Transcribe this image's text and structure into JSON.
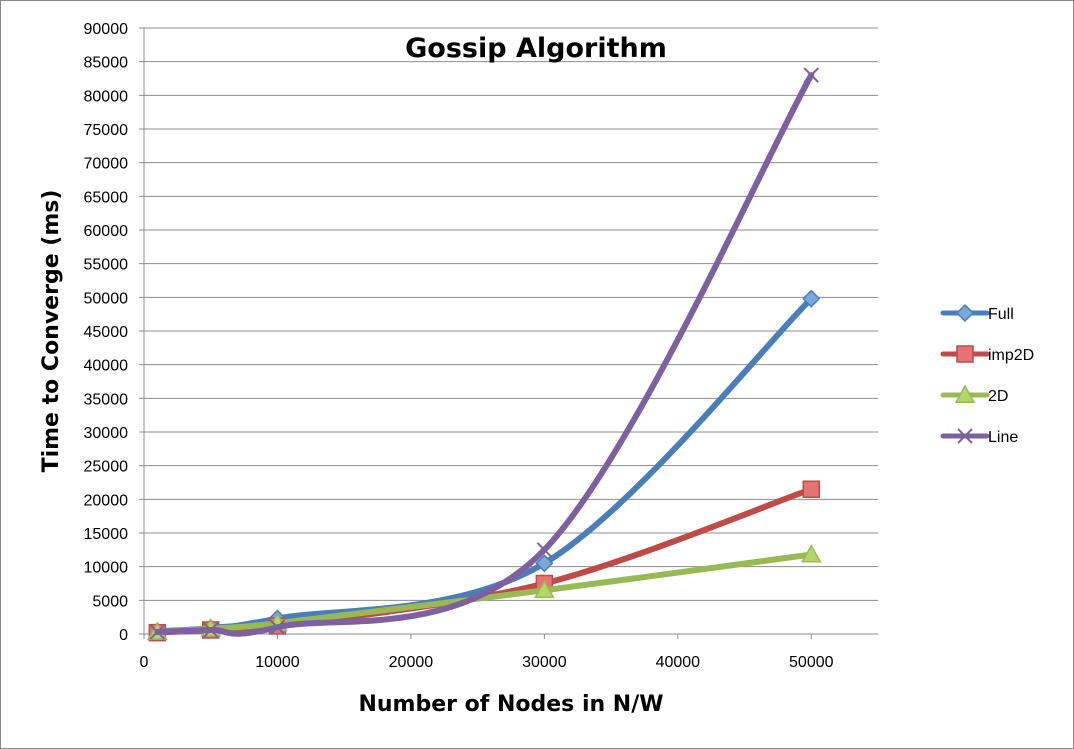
{
  "chart_data": {
    "type": "line",
    "title": "Gossip Algorithm",
    "xlabel": "Number of Nodes in N/W",
    "ylabel": "Time to Converge (ms)",
    "xlim": [
      0,
      55000
    ],
    "ylim": [
      0,
      90000
    ],
    "xticks": [
      0,
      10000,
      20000,
      30000,
      40000,
      50000
    ],
    "xtick_labels": [
      "0",
      "10000",
      "20000",
      "30000",
      "40000",
      "50000"
    ],
    "yticks": [
      0,
      5000,
      10000,
      15000,
      20000,
      25000,
      30000,
      35000,
      40000,
      45000,
      50000,
      55000,
      60000,
      65000,
      70000,
      75000,
      80000,
      85000,
      90000
    ],
    "ytick_labels": [
      "0",
      "5000",
      "10000",
      "15000",
      "20000",
      "25000",
      "30000",
      "35000",
      "40000",
      "45000",
      "50000",
      "55000",
      "60000",
      "65000",
      "70000",
      "75000",
      "80000",
      "85000",
      "90000"
    ],
    "grid": "horizontal",
    "legend_position": "right",
    "x": [
      1000,
      5000,
      10000,
      30000,
      50000
    ],
    "series": [
      {
        "name": "Full",
        "color": "#4a7ebb",
        "marker": "diamond",
        "marker_fill": "#7da7d9",
        "values": [
          400,
          900,
          2300,
          10500,
          49800
        ]
      },
      {
        "name": "imp2D",
        "color": "#be4b48",
        "marker": "square",
        "marker_fill": "#e57373",
        "values": [
          200,
          600,
          1200,
          7500,
          21500
        ]
      },
      {
        "name": "2D",
        "color": "#98b954",
        "marker": "triangle",
        "marker_fill": "#b5d56a",
        "values": [
          300,
          800,
          1600,
          6500,
          11800
        ]
      },
      {
        "name": "Line",
        "color": "#7d60a0",
        "marker": "x",
        "marker_fill": "#7d60a0",
        "values": [
          300,
          600,
          1000,
          12500,
          83000
        ]
      }
    ]
  }
}
